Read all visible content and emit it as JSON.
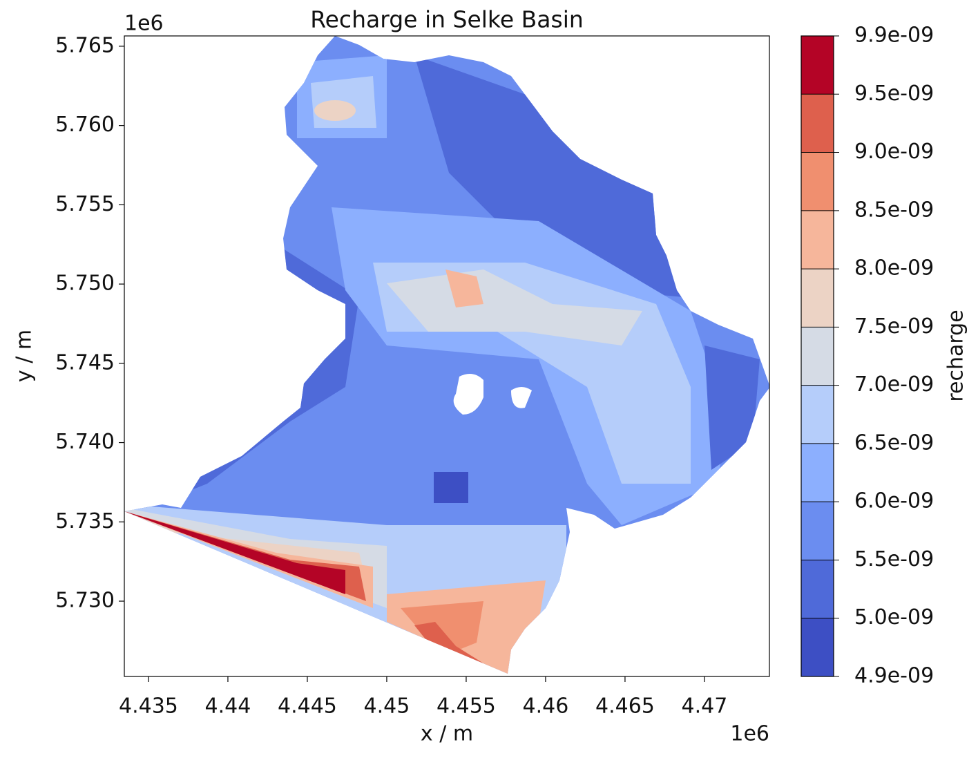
{
  "chart_data": {
    "type": "contourf",
    "title": "Recharge in Selke Basin",
    "x_label": "x / m",
    "y_label": "y / m",
    "x_offset": "1e6",
    "y_offset": "1e6",
    "xlim": [
      4.43348,
      4.47409
    ],
    "ylim": [
      5.72525,
      5.76565
    ],
    "xticks": [
      4.435,
      4.44,
      4.445,
      4.45,
      4.455,
      4.46,
      4.465,
      4.47
    ],
    "yticks": [
      {
        "value": 5.73,
        "label": "5.730"
      },
      {
        "value": 5.735,
        "label": "5.735"
      },
      {
        "value": 5.74,
        "label": "5.740"
      },
      {
        "value": 5.745,
        "label": "5.745"
      },
      {
        "value": 5.75,
        "label": "5.750"
      },
      {
        "value": 5.755,
        "label": "5.755"
      },
      {
        "value": 5.76,
        "label": "5.760"
      },
      {
        "value": 5.765,
        "label": "5.765"
      }
    ],
    "colorbar": {
      "label": "recharge",
      "levels": [
        {
          "value": 4.9e-09,
          "label": "4.9e-09"
        },
        {
          "value": 5e-09,
          "label": "5.0e-09"
        },
        {
          "value": 5.5e-09,
          "label": "5.5e-09"
        },
        {
          "value": 6e-09,
          "label": "6.0e-09"
        },
        {
          "value": 6.5e-09,
          "label": "6.5e-09"
        },
        {
          "value": 7e-09,
          "label": "7.0e-09"
        },
        {
          "value": 7.5e-09,
          "label": "7.5e-09"
        },
        {
          "value": 8e-09,
          "label": "8.0e-09"
        },
        {
          "value": 8.5e-09,
          "label": "8.5e-09"
        },
        {
          "value": 9e-09,
          "label": "9.0e-09"
        },
        {
          "value": 9.5e-09,
          "label": "9.5e-09"
        },
        {
          "value": 9.9e-09,
          "label": "9.9e-09"
        }
      ],
      "colors": [
        "#3d4fc4",
        "#4f6ad9",
        "#6b8df0",
        "#8caffe",
        "#b5cdfa",
        "#d5dbe5",
        "#ecd3c5",
        "#f6b69b",
        "#f08f6f",
        "#de604d",
        "#b40426"
      ]
    }
  }
}
